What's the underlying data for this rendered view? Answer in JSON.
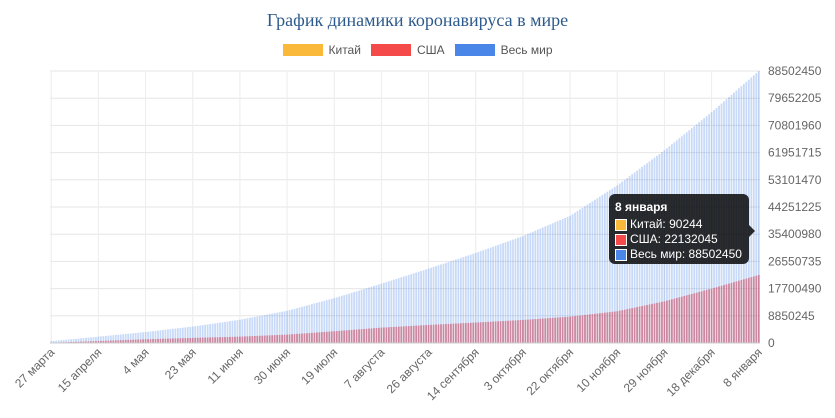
{
  "chart_data": {
    "type": "bar",
    "title": "График динамики коронавируса в мире",
    "stacked": false,
    "legend_position": "top",
    "grid": true,
    "ylim": [
      0,
      88502450
    ],
    "yticks": [
      0,
      8850245,
      17700490,
      26550735,
      35400980,
      44251225,
      53101470,
      61951715,
      70801960,
      79652205,
      88502450
    ],
    "x_tick_labels": [
      "27 марта",
      "15 апреля",
      "4 мая",
      "23 мая",
      "11 июня",
      "30 июня",
      "19 июля",
      "7 августа",
      "26 августа",
      "14 сентября",
      "3 октября",
      "22 октября",
      "10 ноября",
      "29 ноября",
      "18 декабря",
      "8 января"
    ],
    "series": [
      {
        "name": "Китай",
        "color": "#fbb93b",
        "values": [
          81340,
          82341,
          82880,
          82974,
          83057,
          83534,
          83918,
          84491,
          85058,
          85269,
          85536,
          86070,
          86362,
          86634,
          87027,
          90244
        ]
      },
      {
        "name": "США",
        "color": "#f44a4a",
        "values": [
          101657,
          640014,
          1212000,
          1660000,
          2070000,
          2730000,
          3830000,
          5000000,
          5880000,
          6660000,
          7500000,
          8580000,
          10330000,
          13560000,
          17700000,
          22132045
        ]
      },
      {
        "name": "Весь мир",
        "color": "#4a86e8",
        "values": [
          593000,
          2060000,
          3580000,
          5350000,
          7570000,
          10480000,
          14600000,
          19300000,
          24200000,
          29300000,
          34800000,
          41400000,
          51300000,
          62700000,
          75100000,
          88502450
        ]
      }
    ],
    "tooltip": {
      "title": "8 января",
      "rows": [
        "Китай: 90244",
        "США: 22132045",
        "Весь мир: 88502450"
      ]
    }
  }
}
